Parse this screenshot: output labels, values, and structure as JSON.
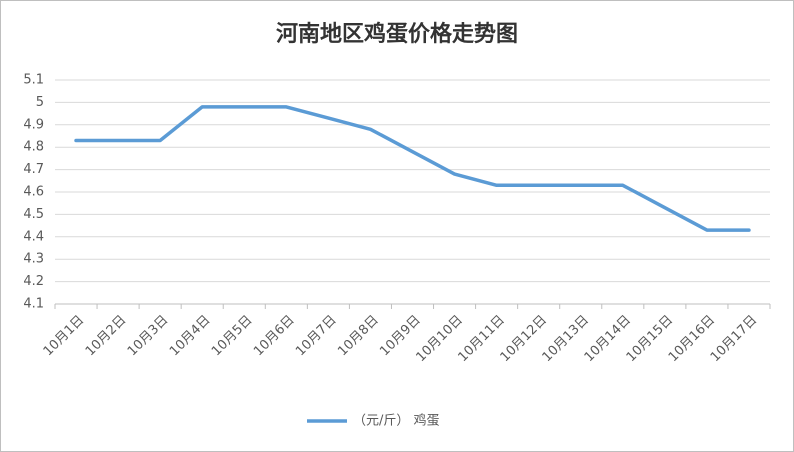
{
  "chart_data": {
    "type": "line",
    "title": "河南地区鸡蛋价格走势图",
    "categories": [
      "10月1日",
      "10月2日",
      "10月3日",
      "10月4日",
      "10月5日",
      "10月6日",
      "10月7日",
      "10月8日",
      "10月9日",
      "10月10日",
      "10月11日",
      "10月12日",
      "10月13日",
      "10月14日",
      "10月15日",
      "10月16日",
      "10月17日"
    ],
    "series": [
      {
        "name": "（元/斤） 鸡蛋",
        "color": "#5b9bd5",
        "values": [
          4.83,
          4.83,
          4.83,
          4.98,
          4.98,
          4.98,
          4.93,
          4.88,
          4.78,
          4.68,
          4.63,
          4.63,
          4.63,
          4.63,
          4.53,
          4.43,
          4.43
        ]
      }
    ],
    "ylim": [
      4.1,
      5.1
    ],
    "yticks": [
      4.1,
      4.2,
      4.3,
      4.4,
      4.5,
      4.6,
      4.7,
      4.8,
      4.9,
      5,
      5.1
    ],
    "grid": true,
    "legend": "bottom"
  }
}
